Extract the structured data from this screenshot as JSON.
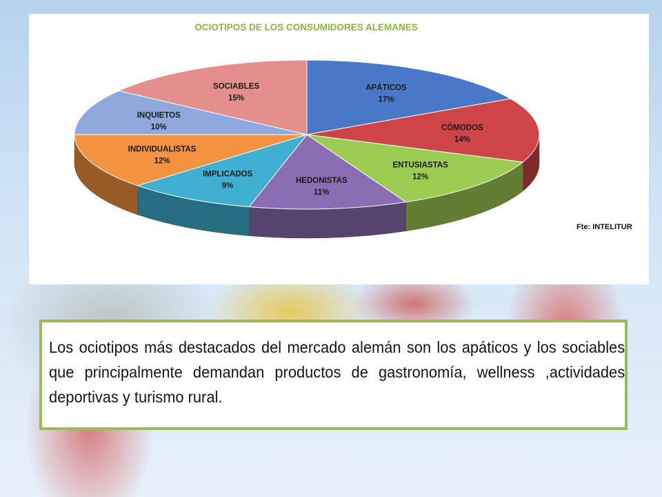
{
  "chart_data": {
    "type": "pie",
    "title": "OCIOTIPOS DE LOS CONSUMIDORES ALEMANES",
    "source": "Fte: INTELITUR",
    "slices": [
      {
        "label": "APÁTICOS",
        "value": 17,
        "value_label": "17%",
        "color": "#4a78c8"
      },
      {
        "label": "CÓMODOS",
        "value": 14,
        "value_label": "14%",
        "color": "#cf4446"
      },
      {
        "label": "ENTUSIASTAS",
        "value": 12,
        "value_label": "12%",
        "color": "#9dcc52"
      },
      {
        "label": "HEDONISTAS",
        "value": 11,
        "value_label": "11%",
        "color": "#8a6db3"
      },
      {
        "label": "IMPLICADOS",
        "value": 9,
        "value_label": "9%",
        "color": "#3fb0d2"
      },
      {
        "label": "INDIVIDUALISTAS",
        "value": 12,
        "value_label": "12%",
        "color": "#f39240"
      },
      {
        "label": "INQUIETOS",
        "value": 10,
        "value_label": "10%",
        "color": "#8fa9dd"
      },
      {
        "label": "SOCIABLES",
        "value": 15,
        "value_label": "15%",
        "color": "#e58e8e"
      }
    ]
  },
  "text_box": {
    "body": "Los ociotipos más destacados del mercado alemán son los apáticos y los sociables que principalmente demandan productos de gastronomía, wellness ,actividades deportivas y turismo rural."
  }
}
